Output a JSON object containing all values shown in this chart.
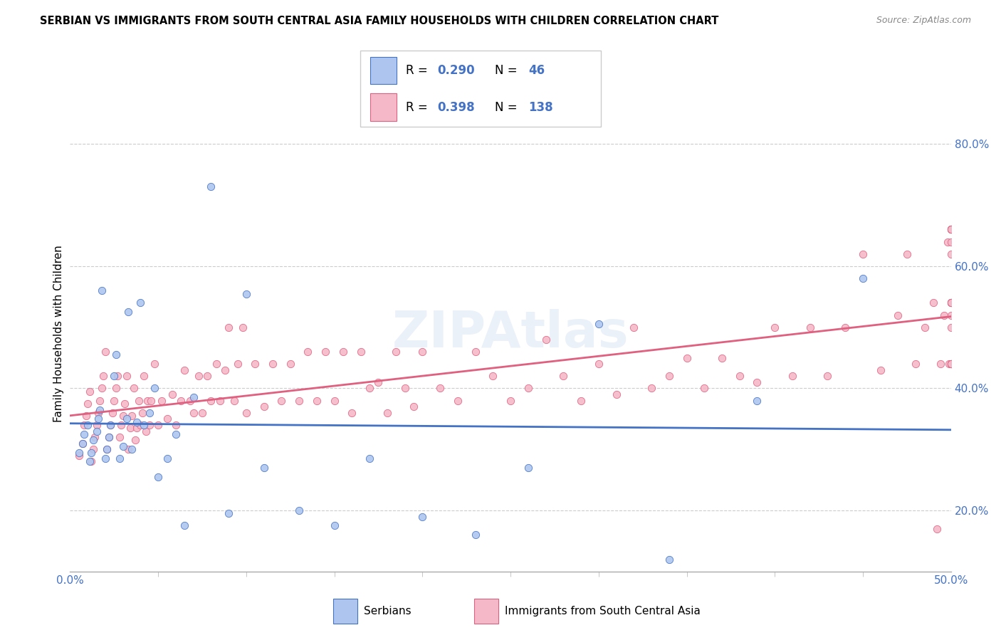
{
  "title": "SERBIAN VS IMMIGRANTS FROM SOUTH CENTRAL ASIA FAMILY HOUSEHOLDS WITH CHILDREN CORRELATION CHART",
  "source": "Source: ZipAtlas.com",
  "ylabel": "Family Households with Children",
  "xlim": [
    0.0,
    0.5
  ],
  "ylim": [
    0.1,
    0.88
  ],
  "y_ticks": [
    0.2,
    0.4,
    0.6,
    0.8
  ],
  "y_tick_labels": [
    "20.0%",
    "40.0%",
    "60.0%",
    "80.0%"
  ],
  "legend_R_serbian": "0.290",
  "legend_N_serbian": "46",
  "legend_R_immigrant": "0.398",
  "legend_N_immigrant": "138",
  "serbian_color": "#aec6ef",
  "immigrant_color": "#f4b8c8",
  "serbian_line_color": "#4472c4",
  "immigrant_line_color": "#e06080",
  "serbian_x": [
    0.005,
    0.007,
    0.008,
    0.01,
    0.011,
    0.012,
    0.013,
    0.015,
    0.016,
    0.017,
    0.018,
    0.02,
    0.021,
    0.022,
    0.023,
    0.025,
    0.026,
    0.028,
    0.03,
    0.032,
    0.033,
    0.035,
    0.038,
    0.04,
    0.042,
    0.045,
    0.048,
    0.05,
    0.055,
    0.06,
    0.065,
    0.07,
    0.08,
    0.09,
    0.1,
    0.11,
    0.13,
    0.15,
    0.17,
    0.2,
    0.23,
    0.26,
    0.3,
    0.34,
    0.39,
    0.45
  ],
  "serbian_y": [
    0.295,
    0.31,
    0.325,
    0.34,
    0.28,
    0.295,
    0.315,
    0.33,
    0.35,
    0.365,
    0.56,
    0.285,
    0.3,
    0.32,
    0.34,
    0.42,
    0.455,
    0.285,
    0.305,
    0.35,
    0.525,
    0.3,
    0.345,
    0.54,
    0.34,
    0.36,
    0.4,
    0.255,
    0.285,
    0.325,
    0.175,
    0.385,
    0.73,
    0.195,
    0.555,
    0.27,
    0.2,
    0.175,
    0.285,
    0.19,
    0.16,
    0.27,
    0.505,
    0.12,
    0.38,
    0.58
  ],
  "immigrant_x": [
    0.005,
    0.007,
    0.008,
    0.009,
    0.01,
    0.011,
    0.012,
    0.013,
    0.014,
    0.015,
    0.016,
    0.017,
    0.018,
    0.019,
    0.02,
    0.021,
    0.022,
    0.023,
    0.024,
    0.025,
    0.026,
    0.027,
    0.028,
    0.029,
    0.03,
    0.031,
    0.032,
    0.033,
    0.034,
    0.035,
    0.036,
    0.037,
    0.038,
    0.039,
    0.04,
    0.041,
    0.042,
    0.043,
    0.044,
    0.045,
    0.046,
    0.048,
    0.05,
    0.052,
    0.055,
    0.058,
    0.06,
    0.063,
    0.065,
    0.068,
    0.07,
    0.073,
    0.075,
    0.078,
    0.08,
    0.083,
    0.085,
    0.088,
    0.09,
    0.093,
    0.095,
    0.098,
    0.1,
    0.105,
    0.11,
    0.115,
    0.12,
    0.125,
    0.13,
    0.135,
    0.14,
    0.145,
    0.15,
    0.155,
    0.16,
    0.165,
    0.17,
    0.175,
    0.18,
    0.185,
    0.19,
    0.195,
    0.2,
    0.21,
    0.22,
    0.23,
    0.24,
    0.25,
    0.26,
    0.27,
    0.28,
    0.29,
    0.3,
    0.31,
    0.32,
    0.33,
    0.34,
    0.35,
    0.36,
    0.37,
    0.38,
    0.39,
    0.4,
    0.41,
    0.42,
    0.43,
    0.44,
    0.45,
    0.46,
    0.47,
    0.475,
    0.48,
    0.485,
    0.49,
    0.492,
    0.494,
    0.496,
    0.498,
    0.499,
    0.5,
    0.5,
    0.5,
    0.5,
    0.5,
    0.5,
    0.5,
    0.5,
    0.5,
    0.5,
    0.5,
    0.5,
    0.5,
    0.5,
    0.5,
    0.5,
    0.5,
    0.5,
    0.5
  ],
  "immigrant_y": [
    0.29,
    0.31,
    0.34,
    0.355,
    0.375,
    0.395,
    0.28,
    0.3,
    0.32,
    0.34,
    0.36,
    0.38,
    0.4,
    0.42,
    0.46,
    0.3,
    0.32,
    0.34,
    0.36,
    0.38,
    0.4,
    0.42,
    0.32,
    0.34,
    0.355,
    0.375,
    0.42,
    0.3,
    0.335,
    0.355,
    0.4,
    0.315,
    0.335,
    0.38,
    0.34,
    0.36,
    0.42,
    0.33,
    0.38,
    0.34,
    0.38,
    0.44,
    0.34,
    0.38,
    0.35,
    0.39,
    0.34,
    0.38,
    0.43,
    0.38,
    0.36,
    0.42,
    0.36,
    0.42,
    0.38,
    0.44,
    0.38,
    0.43,
    0.5,
    0.38,
    0.44,
    0.5,
    0.36,
    0.44,
    0.37,
    0.44,
    0.38,
    0.44,
    0.38,
    0.46,
    0.38,
    0.46,
    0.38,
    0.46,
    0.36,
    0.46,
    0.4,
    0.41,
    0.36,
    0.46,
    0.4,
    0.37,
    0.46,
    0.4,
    0.38,
    0.46,
    0.42,
    0.38,
    0.4,
    0.48,
    0.42,
    0.38,
    0.44,
    0.39,
    0.5,
    0.4,
    0.42,
    0.45,
    0.4,
    0.45,
    0.42,
    0.41,
    0.5,
    0.42,
    0.5,
    0.42,
    0.5,
    0.62,
    0.43,
    0.52,
    0.62,
    0.44,
    0.5,
    0.54,
    0.17,
    0.44,
    0.52,
    0.64,
    0.44,
    0.52,
    0.64,
    0.5,
    0.62,
    0.44,
    0.54,
    0.66,
    0.44,
    0.54,
    0.66,
    0.44,
    0.54,
    0.66,
    0.44,
    0.54,
    0.66,
    0.44,
    0.54,
    0.66
  ]
}
